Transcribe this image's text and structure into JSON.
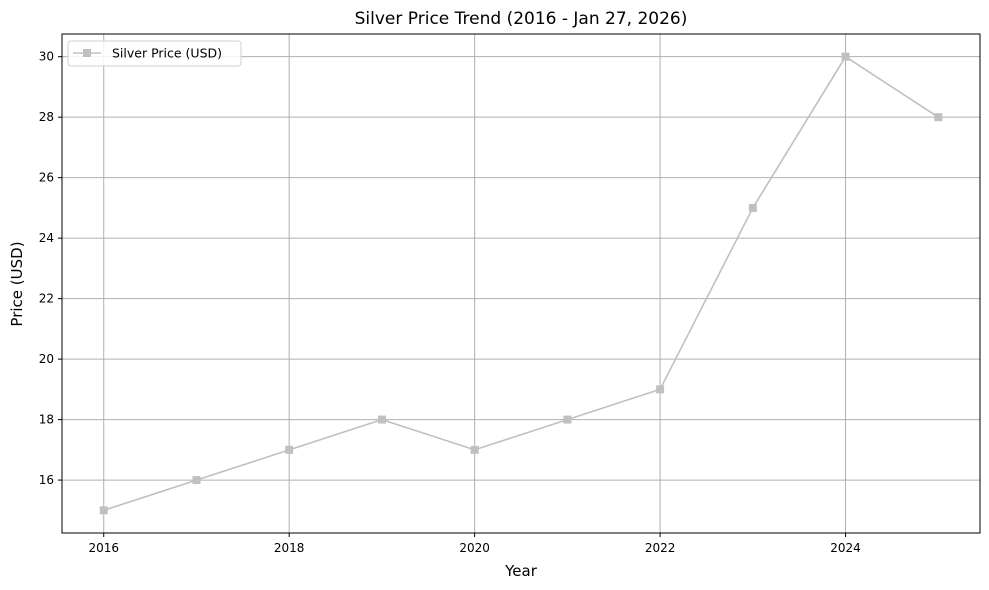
{
  "chart_data": {
    "type": "line",
    "title": "Silver Price Trend (2016 - Jan 27, 2026)",
    "xlabel": "Year",
    "ylabel": "Price (USD)",
    "x": [
      2016,
      2017,
      2018,
      2019,
      2020,
      2021,
      2022,
      2023,
      2024,
      2025
    ],
    "series": [
      {
        "name": "Silver Price (USD)",
        "values": [
          15,
          16,
          17,
          18,
          17,
          18,
          19,
          25,
          30,
          28
        ],
        "color": "#c0c0c0",
        "marker": "square"
      }
    ],
    "xticks": [
      "2016",
      "2018",
      "2020",
      "2022",
      "2024"
    ],
    "yticks": [
      "16",
      "18",
      "20",
      "22",
      "24",
      "26",
      "28",
      "30"
    ],
    "xlim": [
      2015.55,
      2025.45
    ],
    "ylim": [
      14.25,
      30.75
    ],
    "grid": true,
    "legend_position": "top-left"
  }
}
